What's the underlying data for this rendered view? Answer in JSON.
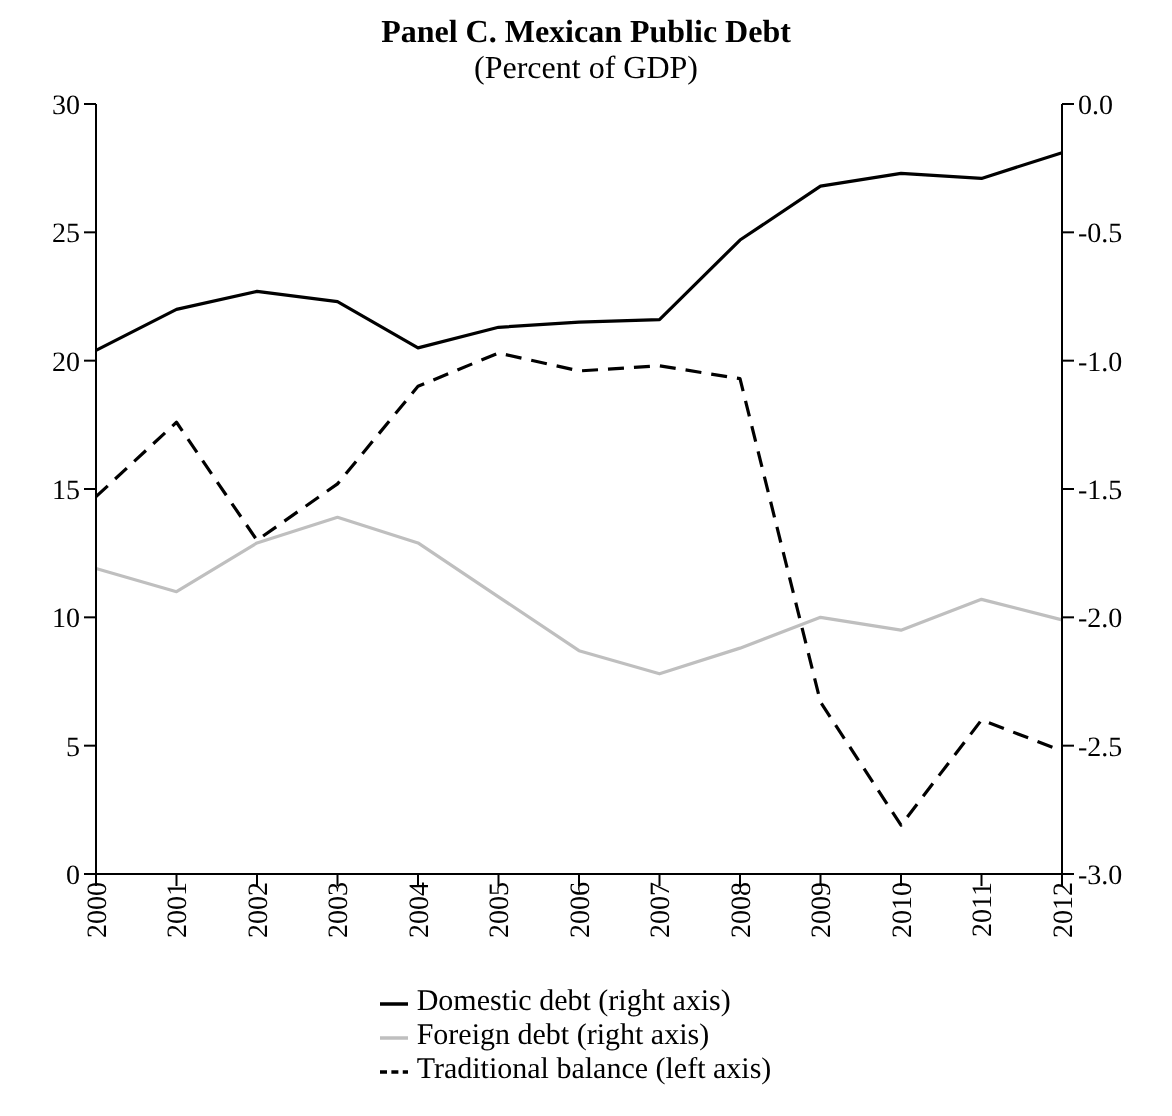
{
  "chart_data": {
    "type": "line",
    "title": "Panel C. Mexican Public Debt",
    "subtitle": "(Percent of GDP)",
    "categories": [
      "2000",
      "2001",
      "2002",
      "2003",
      "2004",
      "2005",
      "2006",
      "2007",
      "2008",
      "2009",
      "2010",
      "2011",
      "2012"
    ],
    "series": [
      {
        "name": "Domestic debt (right axis)",
        "color": "#000000",
        "line_style": "solid",
        "values": [
          20.4,
          22.0,
          22.7,
          22.3,
          20.5,
          21.3,
          21.5,
          21.6,
          24.7,
          26.8,
          27.3,
          27.1,
          28.1
        ]
      },
      {
        "name": "Foreign debt (right axis)",
        "color": "#bfbfbf",
        "line_style": "solid",
        "values": [
          11.9,
          11.0,
          12.9,
          13.9,
          12.9,
          10.8,
          8.7,
          7.8,
          8.8,
          10.0,
          9.5,
          10.7,
          9.9
        ]
      },
      {
        "name": "Traditional balance (left axis)",
        "color": "#000000",
        "line_style": "dashed",
        "axis": "y2",
        "values": [
          -1.53,
          -1.24,
          -1.7,
          -1.48,
          -1.1,
          -0.97,
          -1.04,
          -1.02,
          -1.07,
          -2.33,
          -2.81,
          -2.4,
          -2.52
        ]
      }
    ],
    "ylim": [
      0,
      30
    ],
    "yticks": [
      0,
      5,
      10,
      15,
      20,
      25,
      30
    ],
    "y2lim": [
      -3,
      0
    ],
    "y2ticks": [
      {
        "value": 0,
        "label": "0.0"
      },
      {
        "value": -0.5,
        "label": "-0.5"
      },
      {
        "value": -1,
        "label": "-1.0"
      },
      {
        "value": -1.5,
        "label": "-1.5"
      },
      {
        "value": -2,
        "label": "-2.0"
      },
      {
        "value": -2.5,
        "label": "-2.5"
      },
      {
        "value": -3,
        "label": "-3.0"
      }
    ],
    "legend": "bottom",
    "marker": "none"
  }
}
